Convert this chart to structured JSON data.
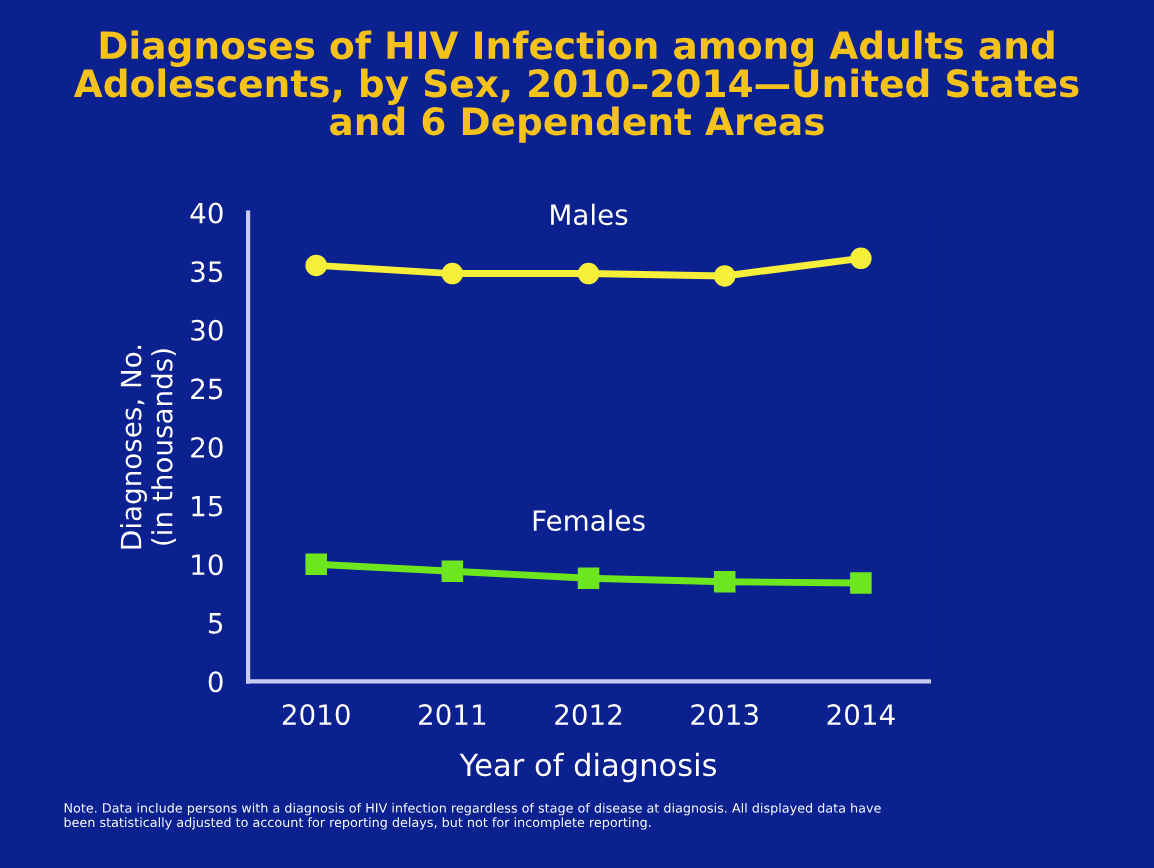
{
  "chart_data": {
    "type": "line",
    "title": "Diagnoses of HIV Infection among Adults and\nAdolescents, by Sex, 2010–2014—United States\nand 6 Dependent Areas",
    "xlabel": "Year of diagnosis",
    "ylabel": "Diagnoses, No.\n(in thousands)",
    "categories": [
      "2010",
      "2011",
      "2012",
      "2013",
      "2014"
    ],
    "series": [
      {
        "name": "Males",
        "color": "#f5ef3a",
        "marker": "circle",
        "values": [
          35.5,
          34.8,
          34.8,
          34.6,
          36.1
        ]
      },
      {
        "name": "Females",
        "color": "#6ee61e",
        "marker": "square",
        "values": [
          10.0,
          9.4,
          8.8,
          8.5,
          8.4
        ]
      }
    ],
    "ylim": [
      0,
      40
    ],
    "yticks": [
      0,
      5,
      10,
      15,
      20,
      25,
      30,
      35,
      40
    ],
    "grid": false,
    "legend": false,
    "line_style": "solid",
    "annotations": [
      "Note. Data include persons with a diagnosis of HIV infection regardless of stage of disease at diagnosis. All displayed data have\nbeen statistically adjusted to account for reporting delays, but not for incomplete reporting."
    ]
  }
}
